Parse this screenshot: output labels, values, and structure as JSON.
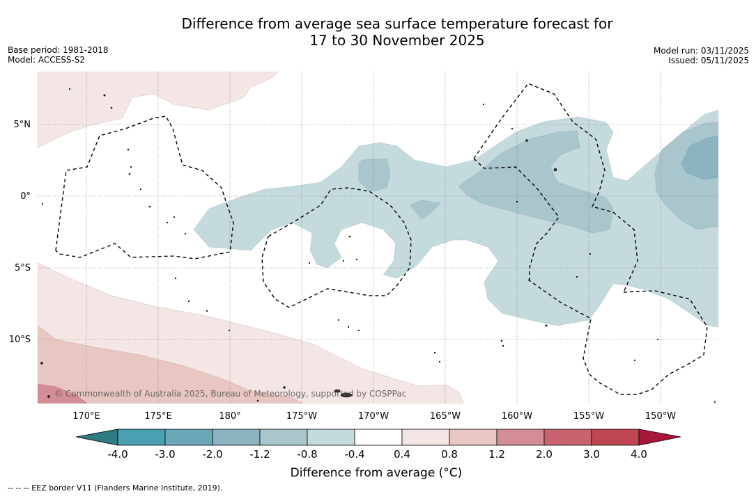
{
  "title": {
    "line1": "Difference from average sea surface temperature forecast for",
    "line2": "17 to 30 November 2025"
  },
  "meta_left": {
    "base_period": "Base period: 1981-2018",
    "model": "Model: ACCESS-S2"
  },
  "meta_right": {
    "model_run": "Model run: 03/11/2025",
    "issued": "Issued: 05/11/2025"
  },
  "map": {
    "lon_labels": [
      "170°E",
      "175°E",
      "180°",
      "175°W",
      "170°W",
      "165°W",
      "160°W",
      "155°W",
      "150°W"
    ],
    "lat_labels": [
      "5°N",
      "0°",
      "5°S",
      "10°S"
    ],
    "copyright": "© Commonwealth of Australia 2025, Bureau of Meteorology, supported by COSPPac"
  },
  "colorbar": {
    "title": "Difference from average (°C)",
    "ticks": [
      "-4.0",
      "-3.0",
      "-2.0",
      "-1.2",
      "-0.8",
      "-0.4",
      "0.4",
      "0.8",
      "1.2",
      "2.0",
      "3.0",
      "4.0"
    ],
    "colors": {
      "under": "#2f7b84",
      "bins": [
        "#4a9fb1",
        "#6aa8b8",
        "#8bb3c0",
        "#a8c6cc",
        "#c5dadd",
        "#ffffff",
        "#f4e6e4",
        "#e8c6c2",
        "#d48d94",
        "#c96370",
        "#c04654"
      ],
      "over": "#a8163a"
    }
  },
  "footnote": "-- -- -- EEZ border V11 (Flanders Marine Institute, 2019)."
}
